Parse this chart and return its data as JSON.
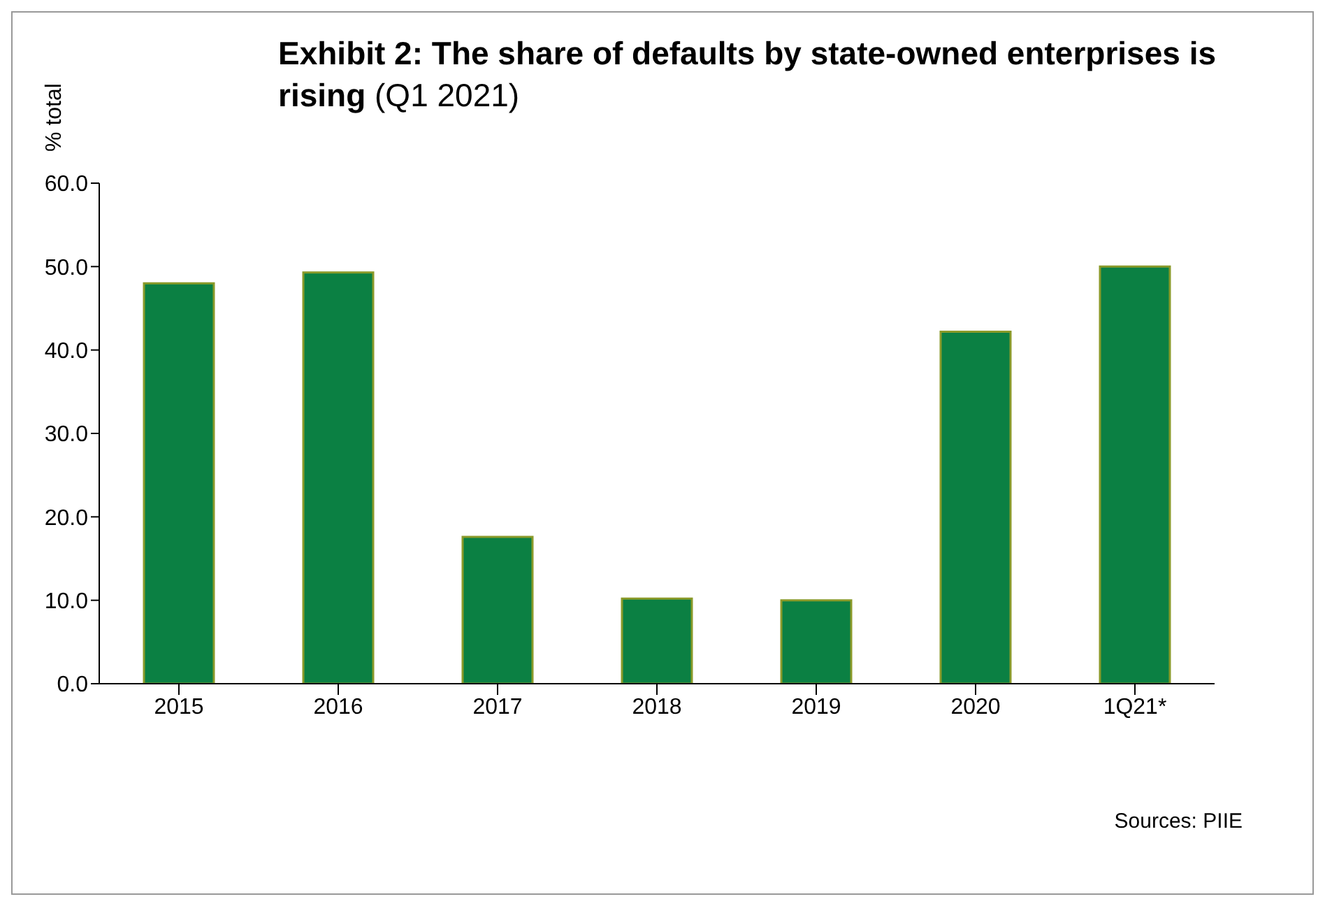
{
  "chart_data": {
    "type": "bar",
    "title": "Exhibit 2: The share of defaults by state-owned enterprises is rising",
    "subtitle": "(Q1 2021)",
    "ylabel": "% total",
    "categories": [
      "2015",
      "2016",
      "2017",
      "2018",
      "2019",
      "2020",
      "1Q21*"
    ],
    "values": [
      48.0,
      49.3,
      17.6,
      10.2,
      10.0,
      42.2,
      50.0
    ],
    "color": "#0b8043",
    "ylim": [
      0,
      60
    ],
    "yticks": [
      {
        "value": 0,
        "label": "0.0"
      },
      {
        "value": 10,
        "label": "10.0"
      },
      {
        "value": 20,
        "label": "20.0"
      },
      {
        "value": 30,
        "label": "30.0"
      },
      {
        "value": 40,
        "label": "40.0"
      },
      {
        "value": 50,
        "label": "50.0"
      },
      {
        "value": 60,
        "label": "60.0"
      }
    ],
    "annotations": [
      "Sources: PIIE"
    ]
  }
}
